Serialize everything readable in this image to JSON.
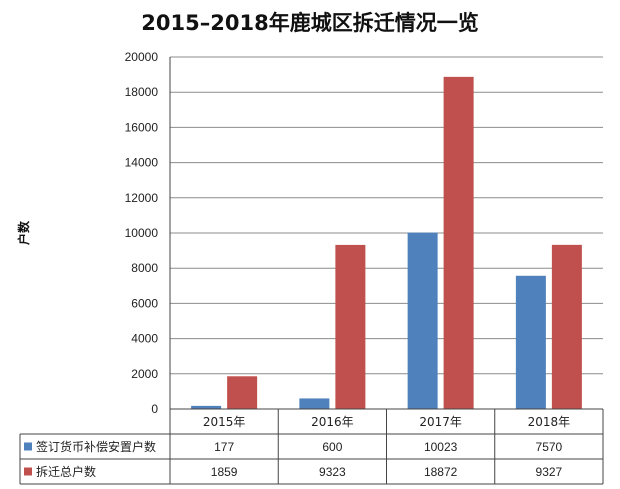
{
  "chart_data": {
    "type": "bar",
    "title": "2015–2018年鹿城区拆迁情况一览",
    "ylabel": "户数",
    "xlabel": "",
    "ylim": [
      0,
      20000
    ],
    "yticks": [
      0,
      2000,
      4000,
      6000,
      8000,
      10000,
      12000,
      14000,
      16000,
      18000,
      20000
    ],
    "grid": true,
    "categories": [
      "2015年",
      "2016年",
      "2017年",
      "2018年"
    ],
    "series": [
      {
        "name": "签订货币补偿安置户数",
        "values": [
          177,
          600,
          10023,
          7570
        ],
        "color": "#4F81BD"
      },
      {
        "name": "拆迁总户数",
        "values": [
          1859,
          9323,
          18872,
          9327
        ],
        "color": "#C0504D"
      }
    ],
    "data_table": true
  }
}
